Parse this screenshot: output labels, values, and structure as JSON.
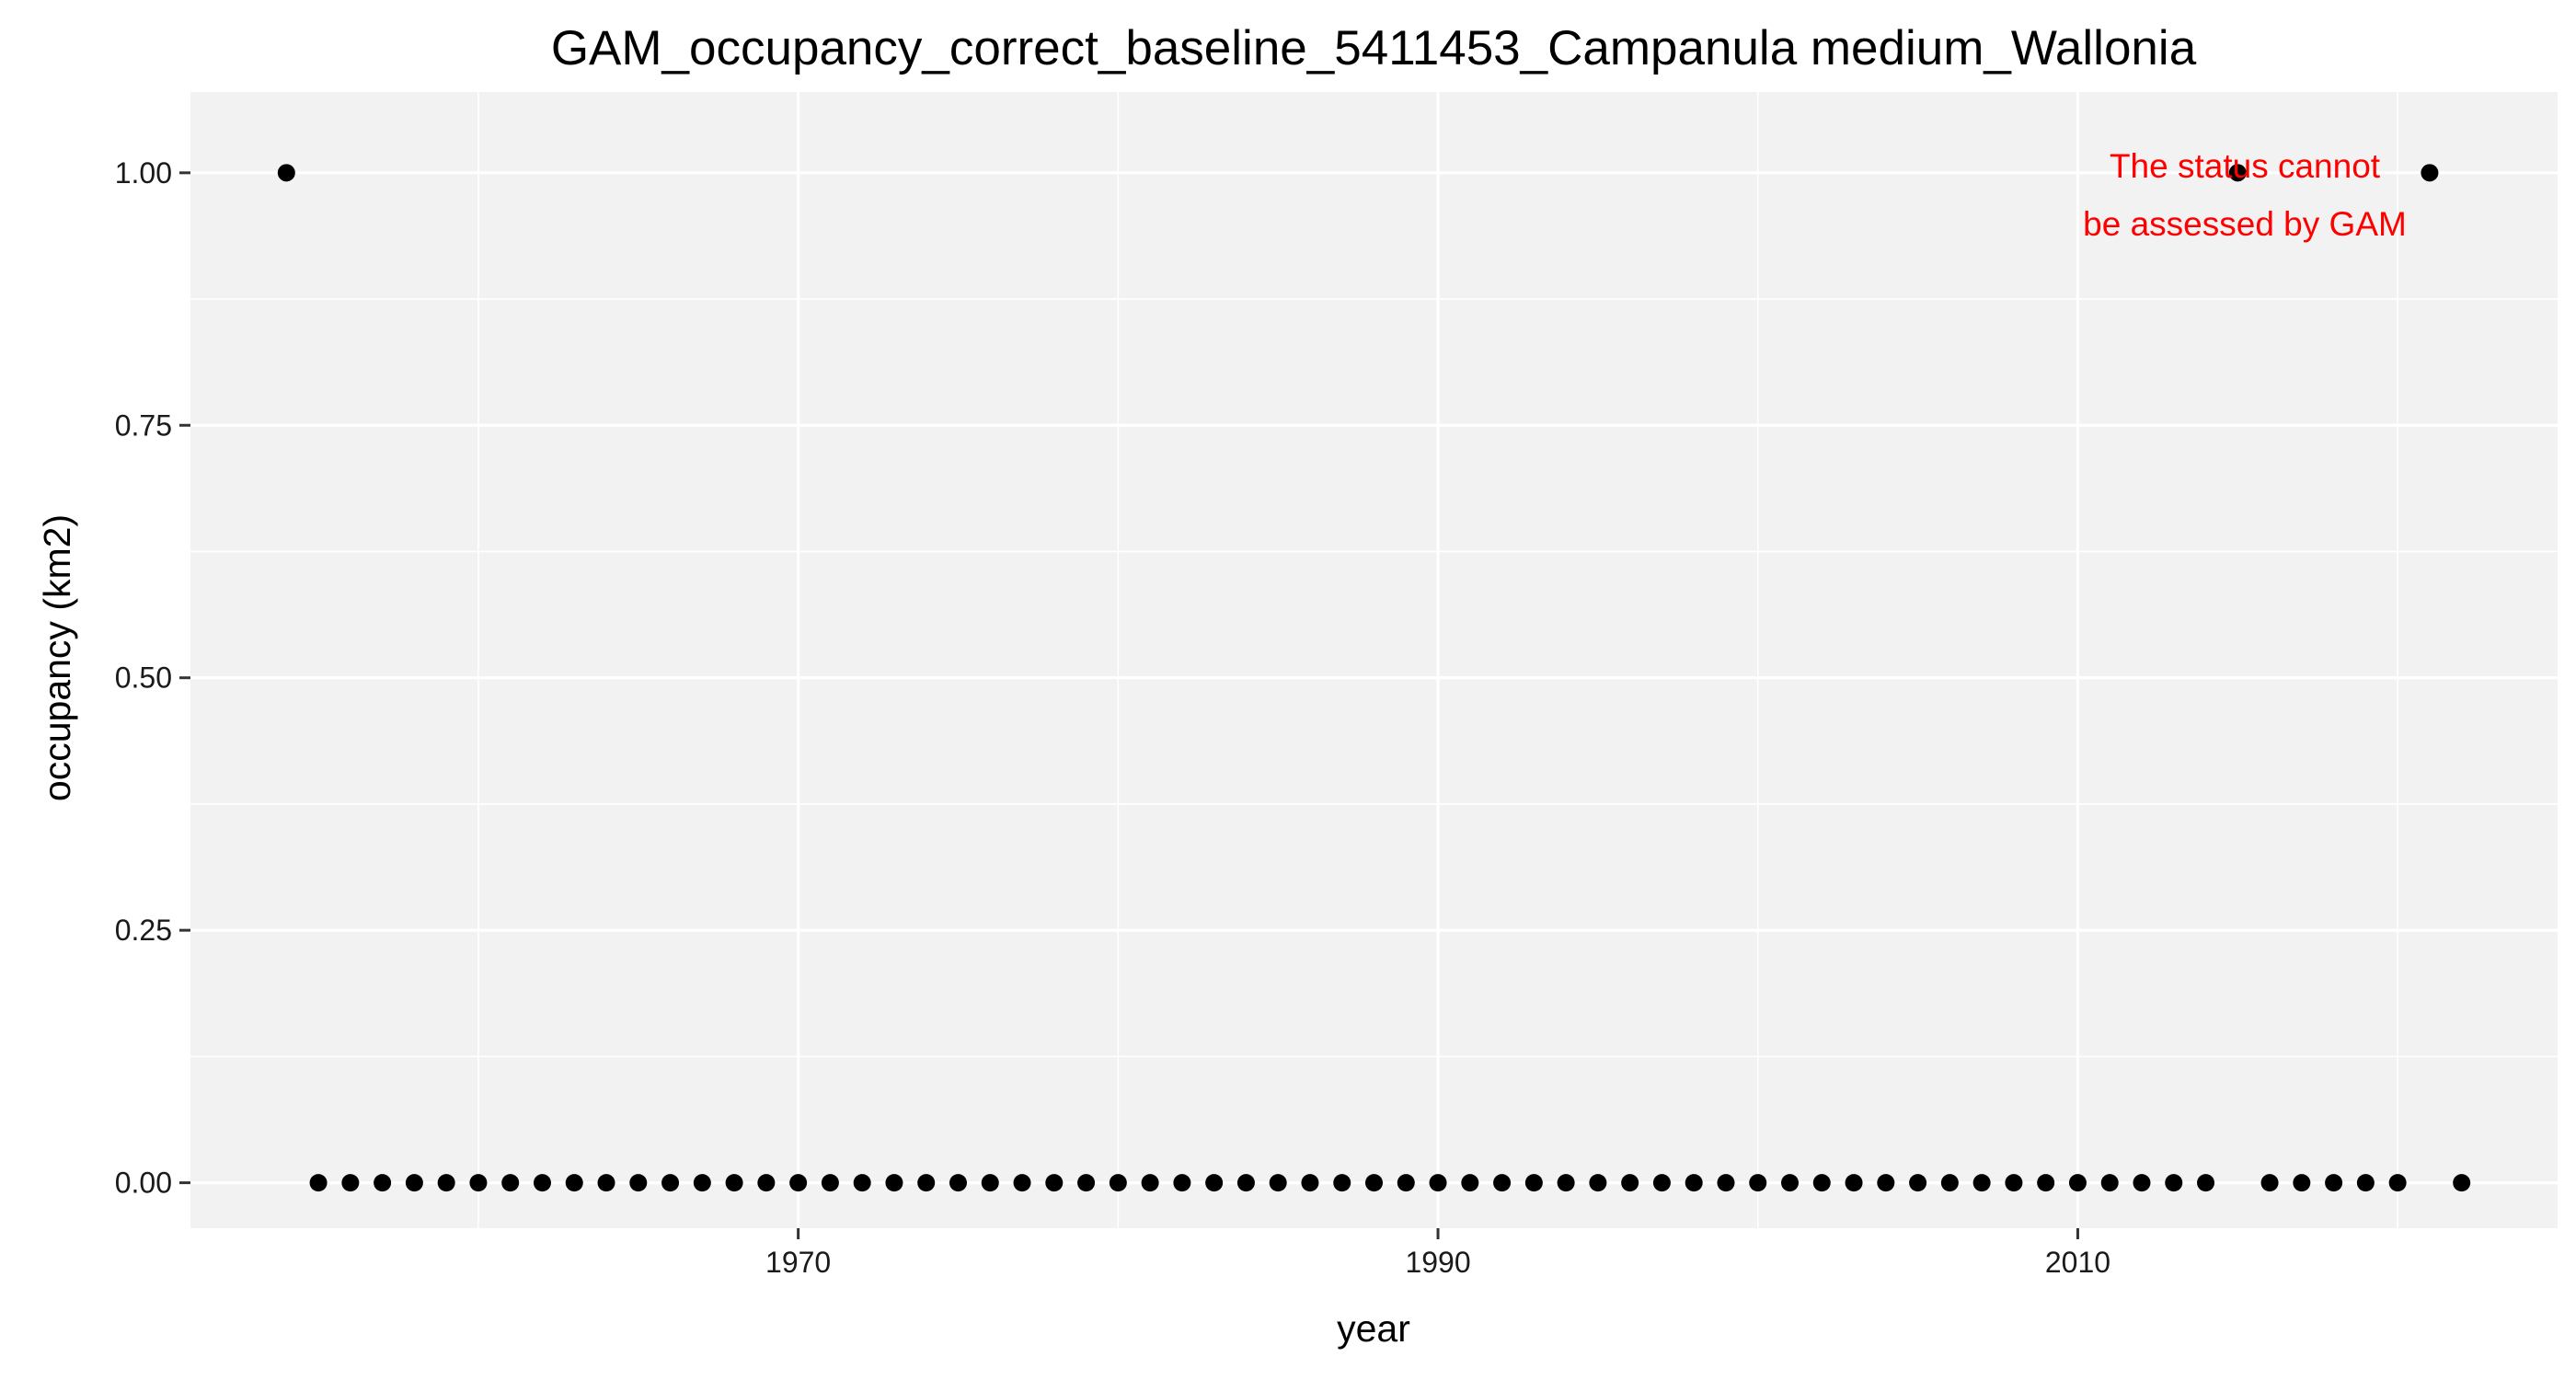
{
  "chart_data": {
    "type": "scatter",
    "title": "GAM_occupancy_correct_baseline_5411453_Campanula medium_Wallonia",
    "xlabel": "year",
    "ylabel": "occupancy (km2)",
    "xlim": [
      1951,
      2025
    ],
    "ylim": [
      -0.045,
      1.08
    ],
    "x_ticks": [
      1970,
      1990,
      2010
    ],
    "x_tick_labels": [
      "1970",
      "1990",
      "2010"
    ],
    "y_ticks": [
      0,
      0.25,
      0.5,
      0.75,
      1.0
    ],
    "y_tick_labels": [
      "0.00",
      "0.25",
      "0.50",
      "0.75",
      "1.00"
    ],
    "grid": true,
    "background": "#f2f2f2",
    "grid_color": "#ffffff",
    "point_color": "#000000",
    "annotation": {
      "lines": [
        "The status cannot",
        "be assessed by GAM"
      ],
      "color": "#ff0000",
      "position": "top-right"
    },
    "points": [
      {
        "x": 1954,
        "y": 1
      },
      {
        "x": 1955,
        "y": 0
      },
      {
        "x": 1956,
        "y": 0
      },
      {
        "x": 1957,
        "y": 0
      },
      {
        "x": 1958,
        "y": 0
      },
      {
        "x": 1959,
        "y": 0
      },
      {
        "x": 1960,
        "y": 0
      },
      {
        "x": 1961,
        "y": 0
      },
      {
        "x": 1962,
        "y": 0
      },
      {
        "x": 1963,
        "y": 0
      },
      {
        "x": 1964,
        "y": 0
      },
      {
        "x": 1965,
        "y": 0
      },
      {
        "x": 1966,
        "y": 0
      },
      {
        "x": 1967,
        "y": 0
      },
      {
        "x": 1968,
        "y": 0
      },
      {
        "x": 1969,
        "y": 0
      },
      {
        "x": 1970,
        "y": 0
      },
      {
        "x": 1971,
        "y": 0
      },
      {
        "x": 1972,
        "y": 0
      },
      {
        "x": 1973,
        "y": 0
      },
      {
        "x": 1974,
        "y": 0
      },
      {
        "x": 1975,
        "y": 0
      },
      {
        "x": 1976,
        "y": 0
      },
      {
        "x": 1977,
        "y": 0
      },
      {
        "x": 1978,
        "y": 0
      },
      {
        "x": 1979,
        "y": 0
      },
      {
        "x": 1980,
        "y": 0
      },
      {
        "x": 1981,
        "y": 0
      },
      {
        "x": 1982,
        "y": 0
      },
      {
        "x": 1983,
        "y": 0
      },
      {
        "x": 1984,
        "y": 0
      },
      {
        "x": 1985,
        "y": 0
      },
      {
        "x": 1986,
        "y": 0
      },
      {
        "x": 1987,
        "y": 0
      },
      {
        "x": 1988,
        "y": 0
      },
      {
        "x": 1989,
        "y": 0
      },
      {
        "x": 1990,
        "y": 0
      },
      {
        "x": 1991,
        "y": 0
      },
      {
        "x": 1992,
        "y": 0
      },
      {
        "x": 1993,
        "y": 0
      },
      {
        "x": 1994,
        "y": 0
      },
      {
        "x": 1995,
        "y": 0
      },
      {
        "x": 1996,
        "y": 0
      },
      {
        "x": 1997,
        "y": 0
      },
      {
        "x": 1998,
        "y": 0
      },
      {
        "x": 1999,
        "y": 0
      },
      {
        "x": 2000,
        "y": 0
      },
      {
        "x": 2001,
        "y": 0
      },
      {
        "x": 2002,
        "y": 0
      },
      {
        "x": 2003,
        "y": 0
      },
      {
        "x": 2004,
        "y": 0
      },
      {
        "x": 2005,
        "y": 0
      },
      {
        "x": 2006,
        "y": 0
      },
      {
        "x": 2007,
        "y": 0
      },
      {
        "x": 2008,
        "y": 0
      },
      {
        "x": 2009,
        "y": 0
      },
      {
        "x": 2010,
        "y": 0
      },
      {
        "x": 2011,
        "y": 0
      },
      {
        "x": 2012,
        "y": 0
      },
      {
        "x": 2013,
        "y": 0
      },
      {
        "x": 2014,
        "y": 0
      },
      {
        "x": 2015,
        "y": 1
      },
      {
        "x": 2016,
        "y": 0
      },
      {
        "x": 2017,
        "y": 0
      },
      {
        "x": 2018,
        "y": 0
      },
      {
        "x": 2019,
        "y": 0
      },
      {
        "x": 2020,
        "y": 0
      },
      {
        "x": 2021,
        "y": 1
      },
      {
        "x": 2022,
        "y": 0
      }
    ]
  }
}
